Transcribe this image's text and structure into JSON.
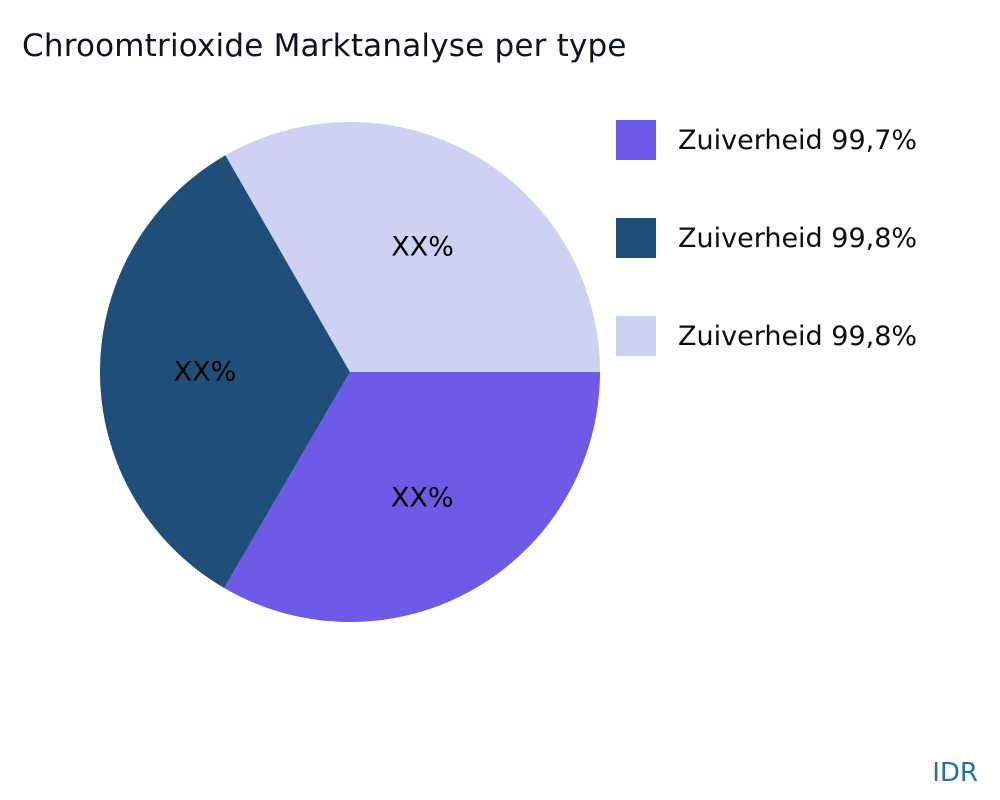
{
  "title": "Chroomtrioxide Marktanalyse per type",
  "watermark": "IDR",
  "colors": {
    "title_text": "#10131f",
    "watermark_text": "#2e6da4",
    "background": "#ffffff",
    "slice_label_text": "#000000"
  },
  "chart_data": {
    "type": "pie",
    "title": "Chroomtrioxide Marktanalyse per type",
    "start_angle_deg": 0,
    "direction": "clockwise",
    "legend_position": "right",
    "center": {
      "x": 350,
      "y": 372
    },
    "radius": 250,
    "label_radius_ratio": 0.58,
    "series": [
      {
        "name": "Zuiverheid 99,7%",
        "value": 33.4,
        "slice_label": "XX%",
        "color": "#6d5be8"
      },
      {
        "name": "Zuiverheid 99,8%",
        "value": 33.3,
        "slice_label": "XX%",
        "color": "#1f4e79"
      },
      {
        "name": "Zuiverheid 99,8%",
        "value": 33.3,
        "slice_label": "XX%",
        "color": "#cdd2f2"
      }
    ]
  },
  "legend": {
    "items": [
      {
        "label": "Zuiverheid 99,7%",
        "color": "#6d5be8"
      },
      {
        "label": "Zuiverheid 99,8%",
        "color": "#1f4e79"
      },
      {
        "label": "Zuiverheid 99,8%",
        "color": "#cdd2f2"
      }
    ]
  }
}
